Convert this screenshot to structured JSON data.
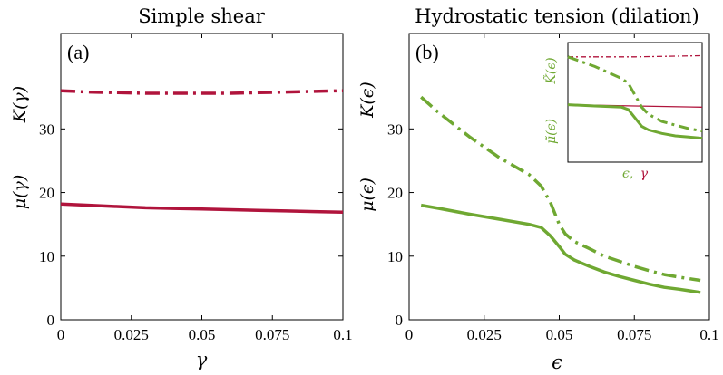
{
  "colors": {
    "green": "#6fa832",
    "red": "#b0143c"
  },
  "chart_data": [
    {
      "type": "line",
      "panel": "(a)",
      "title": "Simple shear",
      "xlabel": "γ",
      "ylabel_upper": "K(γ)",
      "ylabel_lower": "μ(γ)",
      "xlim": [
        0,
        0.1
      ],
      "ylim": [
        0,
        45
      ],
      "xticks": [
        0,
        0.025,
        0.05,
        0.075,
        0.1
      ],
      "xticklabels": [
        "0",
        "0.025",
        "0.05",
        "0.075",
        "0.1"
      ],
      "yticks": [
        0,
        10,
        20,
        30
      ],
      "yticklabels": [
        "0",
        "10",
        "20",
        "30"
      ],
      "grid": false,
      "series": [
        {
          "style": "dashdot",
          "color": "#b0143c",
          "x": [
            0,
            0.01,
            0.02,
            0.03,
            0.04,
            0.05,
            0.06,
            0.07,
            0.08,
            0.09,
            0.1
          ],
          "values": [
            36,
            35.8,
            35.7,
            35.6,
            35.6,
            35.6,
            35.6,
            35.7,
            35.8,
            35.9,
            36
          ]
        },
        {
          "style": "solid",
          "color": "#b0143c",
          "x": [
            0,
            0.01,
            0.02,
            0.03,
            0.04,
            0.05,
            0.06,
            0.07,
            0.08,
            0.09,
            0.1
          ],
          "values": [
            18.2,
            18.0,
            17.8,
            17.6,
            17.5,
            17.4,
            17.3,
            17.2,
            17.1,
            17.0,
            16.9
          ]
        }
      ]
    },
    {
      "type": "line",
      "panel": "(b)",
      "title": "Hydrostatic tension (dilation)",
      "xlabel": "ϵ",
      "ylabel_upper": "K(ϵ)",
      "ylabel_lower": "μ(ϵ)",
      "xlim": [
        0,
        0.1
      ],
      "ylim": [
        0,
        45
      ],
      "xticks": [
        0,
        0.025,
        0.05,
        0.075,
        0.1
      ],
      "xticklabels": [
        "0",
        "0.025",
        "0.05",
        "0.075",
        "0.1"
      ],
      "yticks": [
        0,
        10,
        20,
        30
      ],
      "yticklabels": [
        "0",
        "10",
        "20",
        "30"
      ],
      "grid": false,
      "series": [
        {
          "style": "dashdot",
          "color": "#6fa832",
          "x": [
            0.004,
            0.01,
            0.02,
            0.03,
            0.04,
            0.044,
            0.047,
            0.05,
            0.052,
            0.055,
            0.06,
            0.065,
            0.07,
            0.075,
            0.08,
            0.085,
            0.09,
            0.097
          ],
          "values": [
            35,
            32.5,
            28.8,
            25.5,
            22.8,
            21,
            18.5,
            15,
            13.5,
            12.3,
            11.2,
            10,
            9.2,
            8.4,
            7.7,
            7.1,
            6.7,
            6.2
          ]
        },
        {
          "style": "solid",
          "color": "#6fa832",
          "x": [
            0.004,
            0.01,
            0.02,
            0.03,
            0.04,
            0.044,
            0.047,
            0.05,
            0.052,
            0.055,
            0.06,
            0.065,
            0.07,
            0.075,
            0.08,
            0.085,
            0.09,
            0.097
          ],
          "values": [
            18,
            17.5,
            16.6,
            15.8,
            15,
            14.5,
            13.2,
            11.5,
            10.3,
            9.4,
            8.4,
            7.5,
            6.8,
            6.2,
            5.6,
            5.1,
            4.8,
            4.3
          ]
        }
      ],
      "inset": {
        "ylabel_upper": "K̃(ϵ)",
        "ylabel_lower": "μ̃(ϵ)",
        "xlabel_green": "ϵ,",
        "xlabel_red": "γ",
        "series": [
          {
            "style": "dashdot",
            "color": "#b0143c",
            "x": [
              0,
              0.05,
              0.1
            ],
            "values": [
              0.88,
              0.88,
              0.89
            ]
          },
          {
            "style": "solid",
            "color": "#b0143c",
            "x": [
              0,
              0.05,
              0.1
            ],
            "values": [
              0.48,
              0.47,
              0.46
            ]
          },
          {
            "style": "dashdot",
            "color": "#6fa832",
            "x": [
              0,
              0.02,
              0.04,
              0.045,
              0.05,
              0.055,
              0.06,
              0.07,
              0.08,
              0.09,
              0.1
            ],
            "values": [
              0.88,
              0.8,
              0.7,
              0.66,
              0.56,
              0.46,
              0.4,
              0.34,
              0.31,
              0.28,
              0.26
            ]
          },
          {
            "style": "solid",
            "color": "#6fa832",
            "x": [
              0,
              0.02,
              0.04,
              0.045,
              0.05,
              0.055,
              0.06,
              0.07,
              0.08,
              0.09,
              0.1
            ],
            "values": [
              0.48,
              0.47,
              0.46,
              0.44,
              0.37,
              0.3,
              0.27,
              0.24,
              0.22,
              0.21,
              0.2
            ]
          }
        ]
      }
    }
  ]
}
